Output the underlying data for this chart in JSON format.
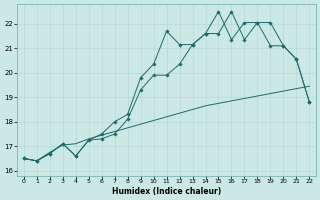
{
  "title": "",
  "xlabel": "Humidex (Indice chaleur)",
  "bg_color": "#cce8e4",
  "line_color": "#1a6b6b",
  "xlim": [
    -0.5,
    22.5
  ],
  "ylim": [
    15.8,
    22.8
  ],
  "yticks": [
    16,
    17,
    18,
    19,
    20,
    21,
    22
  ],
  "xticks": [
    0,
    1,
    2,
    3,
    4,
    5,
    6,
    7,
    8,
    9,
    10,
    11,
    12,
    13,
    14,
    15,
    16,
    17,
    18,
    19,
    20,
    21,
    22
  ],
  "line1_x": [
    0,
    1,
    2,
    3,
    4,
    5,
    6,
    7,
    8,
    9,
    10,
    11,
    12,
    13,
    14,
    15,
    16,
    17,
    18,
    19,
    20,
    21,
    22
  ],
  "line1_y": [
    16.5,
    16.4,
    16.7,
    17.1,
    16.6,
    17.25,
    17.5,
    18.0,
    18.3,
    19.8,
    20.35,
    21.7,
    21.15,
    21.15,
    21.6,
    21.6,
    22.5,
    21.35,
    22.05,
    22.05,
    21.1,
    20.55,
    18.8
  ],
  "line2_x": [
    0,
    1,
    2,
    3,
    4,
    5,
    6,
    7,
    8,
    9,
    10,
    11,
    12,
    13,
    14,
    15,
    16,
    17,
    18,
    19,
    20,
    21,
    22
  ],
  "line2_y": [
    16.5,
    16.4,
    16.7,
    17.1,
    16.6,
    17.25,
    17.3,
    17.5,
    18.1,
    19.3,
    19.9,
    19.9,
    20.35,
    21.15,
    21.6,
    22.5,
    21.35,
    22.05,
    22.05,
    21.1,
    21.1,
    20.55,
    18.8
  ],
  "line3_x": [
    0,
    1,
    2,
    3,
    4,
    5,
    6,
    7,
    8,
    9,
    10,
    11,
    12,
    13,
    14,
    15,
    16,
    17,
    18,
    19,
    20,
    21,
    22
  ],
  "line3_y": [
    16.5,
    16.4,
    16.75,
    17.05,
    17.1,
    17.3,
    17.45,
    17.6,
    17.75,
    17.9,
    18.05,
    18.2,
    18.35,
    18.5,
    18.65,
    18.75,
    18.85,
    18.95,
    19.05,
    19.15,
    19.25,
    19.35,
    19.45
  ]
}
